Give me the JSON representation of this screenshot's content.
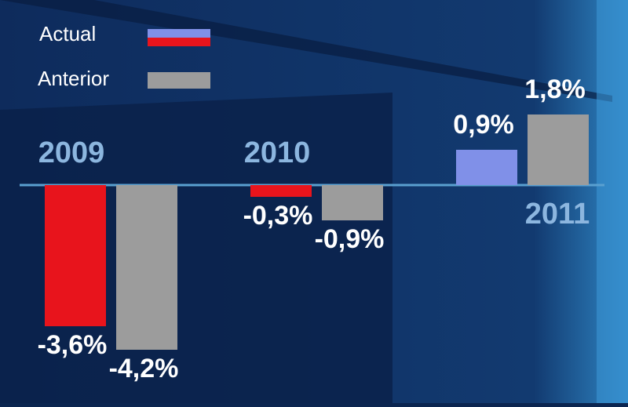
{
  "chart_data": {
    "type": "bar",
    "categories": [
      "2009",
      "2010",
      "2011"
    ],
    "series": [
      {
        "name": "Actual",
        "color": "#e8141c",
        "positive_color": "#8090e8",
        "values": [
          -3.6,
          -0.3,
          0.9
        ],
        "value_labels": [
          "-3,6%",
          "-0,3%",
          "0,9%"
        ]
      },
      {
        "name": "Anterior",
        "color": "#9c9c9c",
        "values": [
          -4.2,
          -0.9,
          1.8
        ],
        "value_labels": [
          "-4,2%",
          "-0,9%",
          "1,8%"
        ]
      }
    ],
    "ylim": [
      -4.6,
      2.6
    ]
  }
}
